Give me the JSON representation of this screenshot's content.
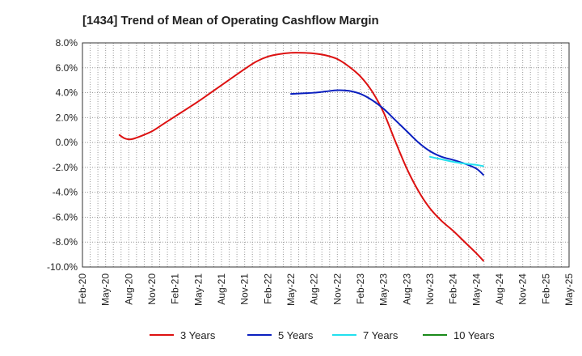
{
  "chart_data": {
    "type": "line",
    "title": "[1434]  Trend of Mean of Operating Cashflow Margin",
    "xlabel": "",
    "ylabel": "",
    "ylim": [
      -10,
      8
    ],
    "yticks": [
      8,
      6,
      4,
      2,
      0,
      -2,
      -4,
      -6,
      -8,
      -10
    ],
    "ytick_labels": [
      "8.0%",
      "6.0%",
      "4.0%",
      "2.0%",
      "0.0%",
      "-2.0%",
      "-4.0%",
      "-6.0%",
      "-8.0%",
      "-10.0%"
    ],
    "x_tick_labels": [
      "Feb-20",
      "May-20",
      "Aug-20",
      "Nov-20",
      "Feb-21",
      "May-21",
      "Aug-21",
      "Nov-21",
      "Feb-22",
      "May-22",
      "Aug-22",
      "Nov-22",
      "Feb-23",
      "May-23",
      "Aug-23",
      "Nov-23",
      "Feb-24",
      "May-24",
      "Aug-24",
      "Nov-24",
      "Feb-25",
      "May-25"
    ],
    "grid": true,
    "legend_position": "bottom",
    "series": [
      {
        "name": "3 Years",
        "color": "#dd1111",
        "points": [
          [
            1.6,
            0.6
          ],
          [
            1.8,
            0.35
          ],
          [
            2.0,
            0.25
          ],
          [
            2.2,
            0.3
          ],
          [
            2.5,
            0.5
          ],
          [
            3.0,
            0.9
          ],
          [
            3.5,
            1.5
          ],
          [
            4.0,
            2.1
          ],
          [
            5.0,
            3.3
          ],
          [
            6.0,
            4.6
          ],
          [
            7.0,
            5.9
          ],
          [
            7.5,
            6.5
          ],
          [
            8.0,
            6.9
          ],
          [
            8.5,
            7.1
          ],
          [
            9.0,
            7.2
          ],
          [
            9.5,
            7.2
          ],
          [
            10.0,
            7.15
          ],
          [
            10.5,
            7.0
          ],
          [
            11.0,
            6.7
          ],
          [
            11.5,
            6.1
          ],
          [
            12.0,
            5.3
          ],
          [
            12.5,
            4.1
          ],
          [
            13.0,
            2.4
          ],
          [
            13.5,
            0.1
          ],
          [
            14.0,
            -2.1
          ],
          [
            14.5,
            -3.9
          ],
          [
            15.0,
            -5.3
          ],
          [
            15.5,
            -6.3
          ],
          [
            16.0,
            -7.1
          ],
          [
            16.5,
            -8.0
          ],
          [
            17.0,
            -8.9
          ],
          [
            17.3,
            -9.5
          ]
        ]
      },
      {
        "name": "5 Years",
        "color": "#0a1fbf",
        "points": [
          [
            9.0,
            3.9
          ],
          [
            9.5,
            3.95
          ],
          [
            10.0,
            4.0
          ],
          [
            10.5,
            4.1
          ],
          [
            11.0,
            4.2
          ],
          [
            11.5,
            4.15
          ],
          [
            12.0,
            3.9
          ],
          [
            12.5,
            3.4
          ],
          [
            13.0,
            2.7
          ],
          [
            13.5,
            1.8
          ],
          [
            14.0,
            0.9
          ],
          [
            14.5,
            0.0
          ],
          [
            15.0,
            -0.7
          ],
          [
            15.5,
            -1.15
          ],
          [
            16.0,
            -1.4
          ],
          [
            16.5,
            -1.7
          ],
          [
            17.0,
            -2.1
          ],
          [
            17.3,
            -2.6
          ]
        ]
      },
      {
        "name": "7 Years",
        "color": "#22e0ee",
        "points": [
          [
            15.0,
            -1.15
          ],
          [
            15.5,
            -1.35
          ],
          [
            16.0,
            -1.55
          ],
          [
            16.5,
            -1.7
          ],
          [
            17.0,
            -1.8
          ],
          [
            17.3,
            -1.9
          ]
        ]
      },
      {
        "name": "10 Years",
        "color": "#1a8a1a",
        "points": []
      }
    ]
  }
}
